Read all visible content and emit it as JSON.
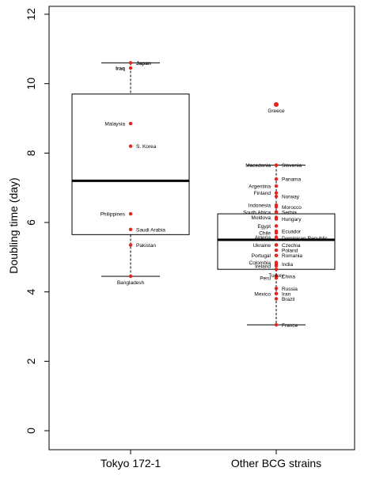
{
  "chart_data": {
    "type": "boxplot",
    "ylabel": "Doubling time (day)",
    "xlabel": "",
    "ylim": [
      0,
      12
    ],
    "yticks": [
      "0",
      "2",
      "4",
      "6",
      "8",
      "10",
      "12"
    ],
    "categories": [
      "Tokyo 172-1",
      "Other BCG strains"
    ],
    "grid": false,
    "groups": [
      {
        "name": "Tokyo 172-1",
        "box": {
          "min": 4.45,
          "q1": 5.65,
          "median": 7.2,
          "q3": 9.7,
          "max": 10.6
        },
        "points": [
          {
            "label": "Japan",
            "y": 10.6,
            "side": "right",
            "bold": true
          },
          {
            "label": "Iraq",
            "y": 10.45,
            "side": "left",
            "bold": true
          },
          {
            "label": "Malaysia",
            "y": 8.85,
            "side": "left"
          },
          {
            "label": "S. Korea",
            "y": 8.2,
            "side": "right"
          },
          {
            "label": "Philippines",
            "y": 6.25,
            "side": "left"
          },
          {
            "label": "Saudi Arabia",
            "y": 5.8,
            "side": "right"
          },
          {
            "label": "Pakistan",
            "y": 5.35,
            "side": "right"
          },
          {
            "label": "Bangladesh",
            "y": 4.45,
            "side": "below"
          }
        ]
      },
      {
        "name": "Other BCG strains",
        "box": {
          "min": 3.05,
          "q1": 4.65,
          "median": 5.5,
          "q3": 6.25,
          "max": 7.65
        },
        "points": [
          {
            "label": "Greece",
            "y": 9.4,
            "side": "below"
          },
          {
            "label": "Macedonia",
            "y": 7.65,
            "side": "left"
          },
          {
            "label": "Slovenia",
            "y": 7.65,
            "side": "right"
          },
          {
            "label": "Panama",
            "y": 7.25,
            "side": "right"
          },
          {
            "label": "Argentina",
            "y": 7.05,
            "side": "left"
          },
          {
            "label": "Finland",
            "y": 6.85,
            "side": "left"
          },
          {
            "label": "Norway",
            "y": 6.75,
            "side": "right"
          },
          {
            "label": "Indonesia",
            "y": 6.5,
            "side": "left"
          },
          {
            "label": "Morocco",
            "y": 6.45,
            "side": "right"
          },
          {
            "label": "South Africa",
            "y": 6.3,
            "side": "left"
          },
          {
            "label": "Serbia",
            "y": 6.3,
            "side": "right"
          },
          {
            "label": "Moldova",
            "y": 6.15,
            "side": "left"
          },
          {
            "label": "Hungary",
            "y": 6.1,
            "side": "right"
          },
          {
            "label": "Egypt",
            "y": 5.9,
            "side": "left"
          },
          {
            "label": "Chile",
            "y": 5.7,
            "side": "left"
          },
          {
            "label": "Ecuador",
            "y": 5.75,
            "side": "right"
          },
          {
            "label": "Algeria",
            "y": 5.58,
            "side": "left"
          },
          {
            "label": "Dominican Republic",
            "y": 5.55,
            "side": "right"
          },
          {
            "label": "Ukraine",
            "y": 5.35,
            "side": "left"
          },
          {
            "label": "Czechia",
            "y": 5.35,
            "side": "right"
          },
          {
            "label": "Poland",
            "y": 5.2,
            "side": "right"
          },
          {
            "label": "Portugal",
            "y": 5.05,
            "side": "left"
          },
          {
            "label": "Romania",
            "y": 5.05,
            "side": "right"
          },
          {
            "label": "Colombia",
            "y": 4.85,
            "side": "left"
          },
          {
            "label": "Ireland",
            "y": 4.75,
            "side": "left"
          },
          {
            "label": "India",
            "y": 4.8,
            "side": "right"
          },
          {
            "label": "Turkey",
            "y": 4.65,
            "side": "below"
          },
          {
            "label": "Peru",
            "y": 4.4,
            "side": "left"
          },
          {
            "label": "China",
            "y": 4.45,
            "side": "right"
          },
          {
            "label": "Russia",
            "y": 4.1,
            "side": "right"
          },
          {
            "label": "Iran",
            "y": 3.95,
            "side": "right"
          },
          {
            "label": "Mexico",
            "y": 3.95,
            "side": "left"
          },
          {
            "label": "Brazil",
            "y": 3.8,
            "side": "right"
          },
          {
            "label": "France",
            "y": 3.05,
            "side": "right"
          }
        ]
      }
    ]
  },
  "colors": {
    "point": "#e8231f",
    "line": "#000000"
  }
}
